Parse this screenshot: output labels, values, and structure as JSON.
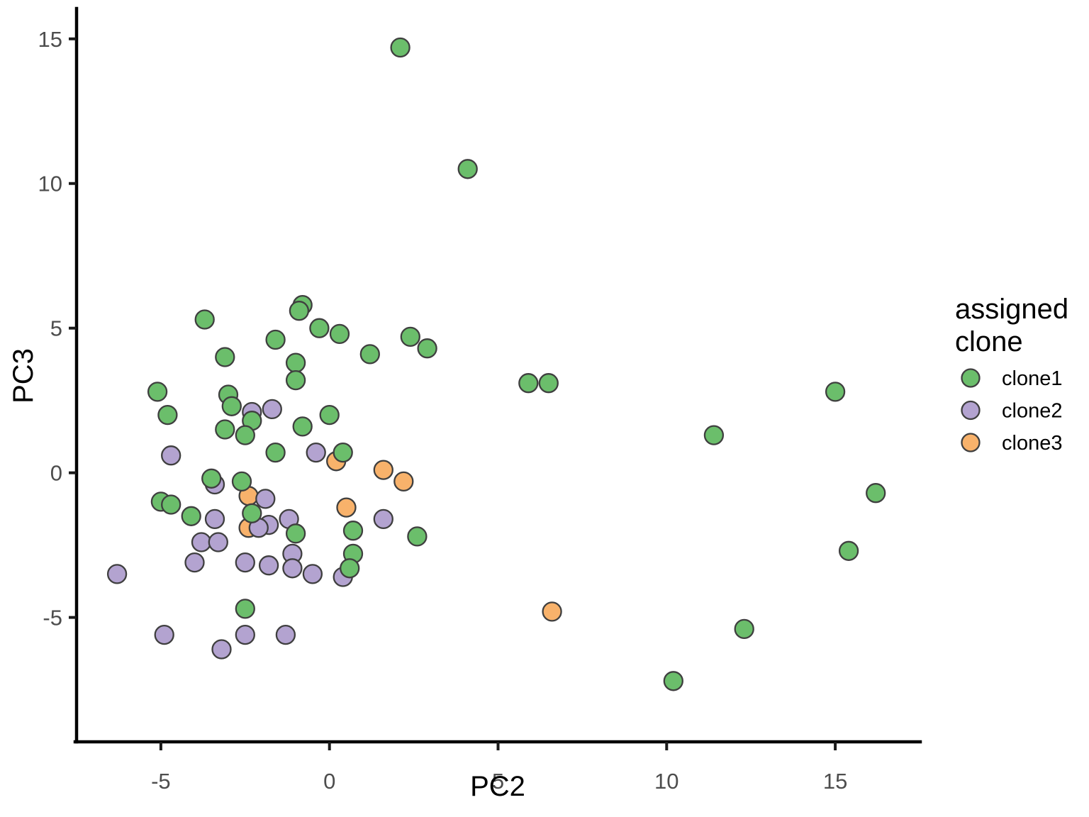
{
  "chart_data": {
    "type": "scatter",
    "title": "",
    "xlabel": "PC2",
    "ylabel": "PC3",
    "xlim": [
      -7.5,
      17.5
    ],
    "ylim": [
      -9.3,
      16.0
    ],
    "xticks": [
      -5,
      0,
      5,
      10,
      15
    ],
    "yticks": [
      -5,
      0,
      5,
      10,
      15
    ],
    "grid": "off",
    "marker": {
      "radius": 13,
      "stroke_color": "#3f3f3f"
    },
    "legend": {
      "position": "right",
      "title_lines": [
        "assigned",
        "clone"
      ]
    },
    "series": [
      {
        "name": "clone1",
        "color": "#6bbe6b",
        "points": [
          [
            2.1,
            14.7
          ],
          [
            4.1,
            10.5
          ],
          [
            -0.8,
            5.8
          ],
          [
            -0.9,
            5.6
          ],
          [
            -3.7,
            5.3
          ],
          [
            -0.3,
            5.0
          ],
          [
            0.3,
            4.8
          ],
          [
            2.4,
            4.7
          ],
          [
            -1.6,
            4.6
          ],
          [
            2.9,
            4.3
          ],
          [
            1.2,
            4.1
          ],
          [
            -3.1,
            4.0
          ],
          [
            -1.0,
            3.8
          ],
          [
            -1.0,
            3.2
          ],
          [
            5.9,
            3.1
          ],
          [
            6.5,
            3.1
          ],
          [
            15.0,
            2.8
          ],
          [
            -5.1,
            2.8
          ],
          [
            -3.0,
            2.7
          ],
          [
            -2.9,
            2.3
          ],
          [
            -4.8,
            2.0
          ],
          [
            0.0,
            2.0
          ],
          [
            -2.3,
            1.8
          ],
          [
            -0.8,
            1.6
          ],
          [
            -3.1,
            1.5
          ],
          [
            11.4,
            1.3
          ],
          [
            -2.5,
            1.3
          ],
          [
            -1.6,
            0.7
          ],
          [
            0.4,
            0.7
          ],
          [
            -3.5,
            -0.2
          ],
          [
            -2.6,
            -0.3
          ],
          [
            16.2,
            -0.7
          ],
          [
            -5.0,
            -1.0
          ],
          [
            -4.7,
            -1.1
          ],
          [
            -2.3,
            -1.4
          ],
          [
            -4.1,
            -1.5
          ],
          [
            0.7,
            -2.0
          ],
          [
            -1.0,
            -2.1
          ],
          [
            2.6,
            -2.2
          ],
          [
            15.4,
            -2.7
          ],
          [
            0.7,
            -2.8
          ],
          [
            0.6,
            -3.3
          ],
          [
            -2.5,
            -4.7
          ],
          [
            12.3,
            -5.4
          ],
          [
            10.2,
            -7.2
          ]
        ]
      },
      {
        "name": "clone2",
        "color": "#b3a3d0",
        "points": [
          [
            -1.7,
            2.2
          ],
          [
            -2.3,
            2.1
          ],
          [
            -0.4,
            0.7
          ],
          [
            -4.7,
            0.6
          ],
          [
            -3.4,
            -0.4
          ],
          [
            -1.9,
            -0.9
          ],
          [
            -3.4,
            -1.6
          ],
          [
            -1.2,
            -1.6
          ],
          [
            1.6,
            -1.6
          ],
          [
            -1.8,
            -1.8
          ],
          [
            -2.1,
            -1.9
          ],
          [
            -3.8,
            -2.4
          ],
          [
            -3.3,
            -2.4
          ],
          [
            -1.1,
            -2.8
          ],
          [
            -4.0,
            -3.1
          ],
          [
            -2.5,
            -3.1
          ],
          [
            -1.8,
            -3.2
          ],
          [
            -1.1,
            -3.3
          ],
          [
            -6.3,
            -3.5
          ],
          [
            -0.5,
            -3.5
          ],
          [
            0.4,
            -3.6
          ],
          [
            -4.9,
            -5.6
          ],
          [
            -2.5,
            -5.6
          ],
          [
            -1.3,
            -5.6
          ],
          [
            -3.2,
            -6.1
          ]
        ]
      },
      {
        "name": "clone3",
        "color": "#f8b26b",
        "points": [
          [
            0.2,
            0.4
          ],
          [
            1.6,
            0.1
          ],
          [
            2.2,
            -0.3
          ],
          [
            -2.4,
            -0.8
          ],
          [
            0.5,
            -1.2
          ],
          [
            -2.4,
            -1.9
          ],
          [
            6.6,
            -4.8
          ]
        ]
      }
    ]
  }
}
